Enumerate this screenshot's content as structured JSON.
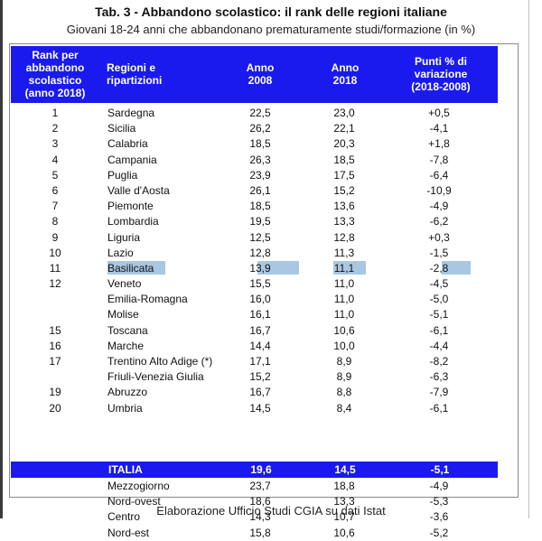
{
  "title": "Tab. 3 - Abbandono scolastico: il rank delle regioni italiane",
  "subtitle": "Giovani 18-24 anni che abbandonano prematuramente studi/formazione (in %)",
  "headers": {
    "rank": "Rank per\nabbandono\nscolastico\n(anno 2018)",
    "region": "Regioni e\nripartizioni",
    "y2008": "Anno\n2008",
    "y2018": "Anno\n2018",
    "variation": "Punti % di\nvariazione\n(2018-2008)"
  },
  "rows": [
    {
      "rank": "1",
      "region": "Sardegna",
      "y2008": "22,5",
      "y2018": "23,0",
      "var": "+0,5"
    },
    {
      "rank": "2",
      "region": "Sicilia",
      "y2008": "26,2",
      "y2018": "22,1",
      "var": "-4,1"
    },
    {
      "rank": "3",
      "region": "Calabria",
      "y2008": "18,5",
      "y2018": "20,3",
      "var": "+1,8"
    },
    {
      "rank": "4",
      "region": "Campania",
      "y2008": "26,3",
      "y2018": "18,5",
      "var": "-7,8"
    },
    {
      "rank": "5",
      "region": "Puglia",
      "y2008": "23,9",
      "y2018": "17,5",
      "var": "-6,4"
    },
    {
      "rank": "6",
      "region": "Valle d'Aosta",
      "y2008": "26,1",
      "y2018": "15,2",
      "var": "-10,9"
    },
    {
      "rank": "7",
      "region": "Piemonte",
      "y2008": "18,5",
      "y2018": "13,6",
      "var": "-4,9"
    },
    {
      "rank": "8",
      "region": "Lombardia",
      "y2008": "19,5",
      "y2018": "13,3",
      "var": "-6,2"
    },
    {
      "rank": "9",
      "region": "Liguria",
      "y2008": "12,5",
      "y2018": "12,8",
      "var": "+0,3"
    },
    {
      "rank": "10",
      "region": "Lazio",
      "y2008": "12,8",
      "y2018": "11,3",
      "var": "-1,5"
    },
    {
      "rank": "11",
      "region": "Basilicata",
      "y2008": "13,9",
      "y2018": "11,1",
      "var": "-2,8",
      "highlight": true
    },
    {
      "rank": "12",
      "region": "Veneto",
      "y2008": "15,5",
      "y2018": "11,0",
      "var": "-4,5"
    },
    {
      "rank": "",
      "region": "Emilia-Romagna",
      "y2008": "16,0",
      "y2018": "11,0",
      "var": "-5,0"
    },
    {
      "rank": "",
      "region": "Molise",
      "y2008": "16,1",
      "y2018": "11,0",
      "var": "-5,1"
    },
    {
      "rank": "15",
      "region": "Toscana",
      "y2008": "16,7",
      "y2018": "10,6",
      "var": "-6,1"
    },
    {
      "rank": "16",
      "region": "Marche",
      "y2008": "14,4",
      "y2018": "10,0",
      "var": "-4,4"
    },
    {
      "rank": "17",
      "region": "Trentino Alto Adige (*)",
      "y2008": "17,1",
      "y2018": "8,9",
      "var": "-8,2"
    },
    {
      "rank": "",
      "region": "Friuli-Venezia Giulia",
      "y2008": "15,2",
      "y2018": "8,9",
      "var": "-6,3"
    },
    {
      "rank": "19",
      "region": "Abruzzo",
      "y2008": "16,7",
      "y2018": "8,8",
      "var": "-7,9"
    },
    {
      "rank": "20",
      "region": "Umbria",
      "y2008": "14,5",
      "y2018": "8,4",
      "var": "-6,1"
    }
  ],
  "italia": {
    "region": "ITALIA",
    "y2008": "19,6",
    "y2018": "14,5",
    "var": "-5,1"
  },
  "ripartizioni": [
    {
      "region": "Mezzogiorno",
      "y2008": "23,7",
      "y2018": "18,8",
      "var": "-4,9"
    },
    {
      "region": "Nord-ovest",
      "y2008": "18,6",
      "y2018": "13,3",
      "var": "-5,3"
    },
    {
      "region": "Centro",
      "y2008": "14,3",
      "y2018": "10,7",
      "var": "-3,6"
    },
    {
      "region": "Nord-est",
      "y2008": "15,8",
      "y2018": "10,6",
      "var": "-5,2"
    }
  ],
  "footer": "Elaborazione Ufficio Studi CGIA su dati Istat",
  "colors": {
    "header_bg": "#1a1aef",
    "highlight": "#a9c7e3"
  }
}
